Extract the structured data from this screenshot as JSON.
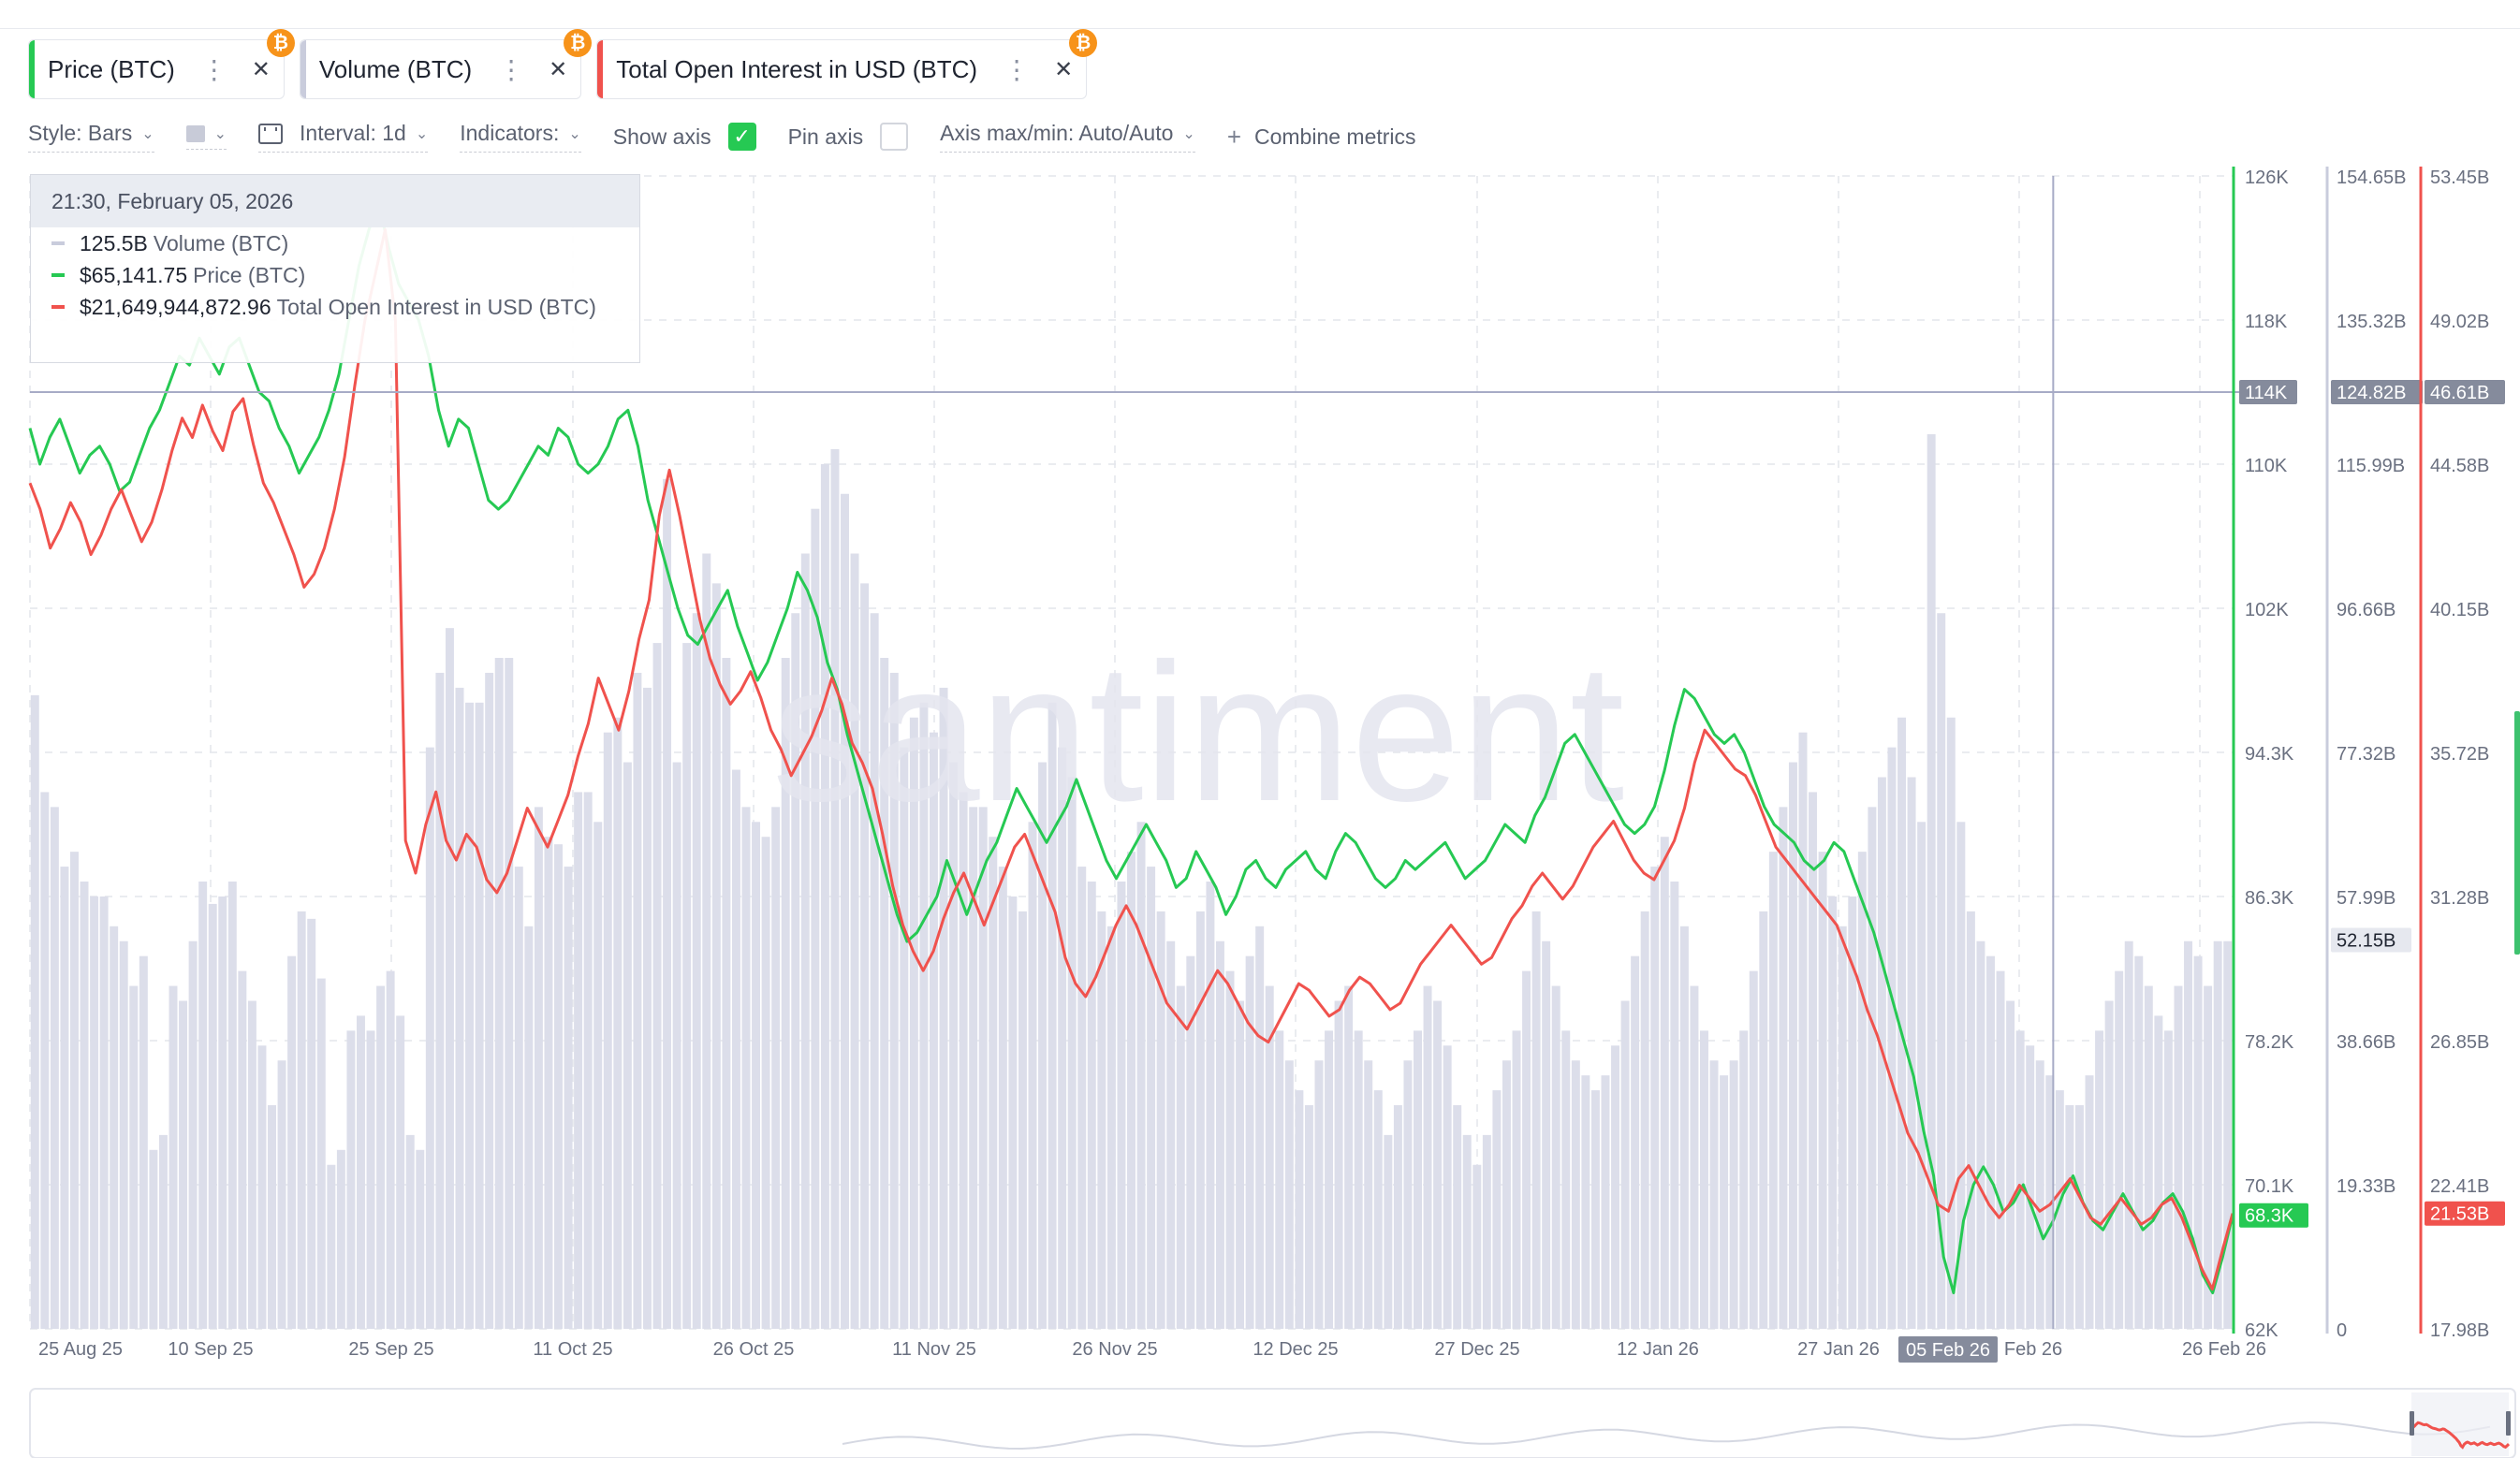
{
  "metrics": [
    {
      "label": "Price (BTC)",
      "color": "#26c953",
      "badge": "₿"
    },
    {
      "label": "Volume (BTC)",
      "color": "#c9ccdc",
      "badge": "₿"
    },
    {
      "label": "Total Open Interest in USD (BTC)",
      "color": "#f0524d",
      "badge": "₿"
    }
  ],
  "toolbar": {
    "style_label": "Style: Bars",
    "interval_label": "Interval: 1d",
    "indicators_label": "Indicators:",
    "show_axis_label": "Show axis",
    "pin_axis_label": "Pin axis",
    "axis_label": "Axis max/min: Auto/Auto",
    "combine_label": "Combine metrics"
  },
  "tooltip": {
    "date": "21:30, February 05, 2026",
    "rows": [
      {
        "value": "125.5B",
        "name": "Volume (BTC)",
        "color": "#c9ccdc"
      },
      {
        "value": "$65,141.75",
        "name": "Price (BTC)",
        "color": "#26c953"
      },
      {
        "value": "$21,649,944,872.96",
        "name": "Total Open Interest in USD (BTC)",
        "color": "#f0524d"
      }
    ]
  },
  "watermark": "santiment",
  "chart_data": {
    "type": "line",
    "x_ticks": [
      "25 Aug 25",
      "10 Sep 25",
      "25 Sep 25",
      "11 Oct 25",
      "26 Oct 25",
      "11 Nov 25",
      "26 Nov 25",
      "12 Dec 25",
      "27 Dec 25",
      "12 Jan 26",
      "27 Jan 26",
      "Feb 26",
      "26 Feb 26"
    ],
    "x_highlight": "05 Feb 26",
    "axes": {
      "price": {
        "ticks": [
          "126K",
          "118K",
          "110K",
          "102K",
          "94.3K",
          "86.3K",
          "78.2K",
          "70.1K",
          "62K"
        ],
        "range": [
          62000,
          126000
        ],
        "cursor_label": "114K",
        "last_label": "68.3K",
        "color": "#26c953"
      },
      "volume": {
        "ticks": [
          "154.65B",
          "135.32B",
          "115.99B",
          "96.66B",
          "77.32B",
          "57.99B",
          "38.66B",
          "19.33B",
          "0"
        ],
        "range": [
          0,
          154.65
        ],
        "cursor_label": "124.82B",
        "last_label": "52.15B",
        "color": "#c9ccdc"
      },
      "open_interest": {
        "ticks": [
          "53.45B",
          "49.02B",
          "44.58B",
          "40.15B",
          "35.72B",
          "31.28B",
          "26.85B",
          "22.41B",
          "17.98B"
        ],
        "range": [
          17.98,
          53.45
        ],
        "cursor_label": "46.61B",
        "last_label": "21.53B",
        "color": "#f0524d"
      }
    },
    "series": [
      {
        "name": "Price (BTC)",
        "axis": "price",
        "color": "#26c953",
        "values": [
          112000,
          110000,
          111500,
          112500,
          111000,
          109500,
          110500,
          111000,
          110000,
          108500,
          109000,
          110500,
          112000,
          113000,
          114500,
          116000,
          115500,
          117000,
          116000,
          115000,
          116500,
          117000,
          115500,
          114000,
          113500,
          112000,
          111000,
          109500,
          110500,
          111500,
          113000,
          115000,
          118000,
          121000,
          123000,
          124500,
          122000,
          120000,
          119000,
          118000,
          116000,
          113000,
          111000,
          112500,
          112000,
          110000,
          108000,
          107500,
          108000,
          109000,
          110000,
          111000,
          110500,
          112000,
          111500,
          110000,
          109500,
          110000,
          111000,
          112500,
          113000,
          111000,
          108000,
          106000,
          104000,
          102000,
          100500,
          100000,
          101000,
          102000,
          103000,
          101000,
          99500,
          98000,
          99000,
          100500,
          102000,
          104000,
          103000,
          101500,
          99000,
          97500,
          95000,
          93000,
          91000,
          89000,
          87000,
          85000,
          83500,
          84000,
          85000,
          86000,
          88000,
          86500,
          85000,
          86500,
          88000,
          89000,
          90500,
          92000,
          91000,
          90000,
          89000,
          90000,
          91000,
          92500,
          91000,
          89500,
          88000,
          87000,
          88000,
          89000,
          90000,
          89000,
          88000,
          86500,
          87000,
          88500,
          87500,
          86500,
          85000,
          86000,
          87500,
          88000,
          87000,
          86500,
          87500,
          88000,
          88500,
          87500,
          87000,
          88500,
          89500,
          89000,
          88000,
          87000,
          86500,
          87000,
          88000,
          87500,
          88000,
          88500,
          89000,
          88000,
          87000,
          87500,
          88000,
          89000,
          90000,
          89500,
          89000,
          90500,
          91500,
          93000,
          94500,
          95000,
          94000,
          93000,
          92000,
          91000,
          90000,
          89500,
          90000,
          91000,
          93000,
          95500,
          97500,
          97000,
          96000,
          95000,
          94500,
          95000,
          94000,
          92500,
          91000,
          90000,
          89500,
          89000,
          88000,
          87500,
          88000,
          89000,
          88500,
          87000,
          85500,
          84000,
          82000,
          80000,
          78000,
          76000,
          73000,
          70500,
          66000,
          64000,
          68000,
          70000,
          71000,
          70000,
          68500,
          69000,
          70000,
          68500,
          67000,
          68000,
          69500,
          70500,
          69000,
          68000,
          67500,
          68500,
          69500,
          68500,
          67500,
          68000,
          69000,
          69500,
          68500,
          67000,
          65000,
          64000,
          66000,
          68300
        ]
      },
      {
        "name": "Total Open Interest in USD (BTC)",
        "axis": "open_interest",
        "color": "#f0524d",
        "values": [
          44.0,
          43.2,
          42.0,
          42.6,
          43.4,
          42.8,
          41.8,
          42.4,
          43.2,
          43.8,
          43.0,
          42.2,
          42.8,
          43.8,
          45.0,
          46.0,
          45.4,
          46.4,
          45.6,
          45.0,
          46.2,
          46.6,
          45.2,
          44.0,
          43.4,
          42.6,
          41.8,
          40.8,
          41.2,
          42.0,
          43.2,
          44.8,
          47.0,
          49.0,
          50.4,
          51.8,
          49.0,
          33.0,
          32.0,
          33.5,
          34.5,
          33.0,
          32.4,
          33.2,
          32.8,
          31.8,
          31.4,
          32.0,
          33.0,
          34.0,
          33.4,
          32.8,
          33.6,
          34.4,
          35.6,
          36.6,
          38.0,
          37.2,
          36.4,
          37.6,
          39.2,
          40.4,
          43.0,
          44.4,
          43.0,
          41.4,
          39.8,
          38.6,
          37.8,
          37.2,
          37.6,
          38.2,
          37.4,
          36.4,
          35.8,
          35.0,
          35.6,
          36.2,
          37.0,
          38.0,
          37.2,
          36.0,
          35.4,
          34.6,
          33.2,
          31.6,
          30.4,
          29.6,
          29.0,
          29.6,
          30.6,
          31.4,
          32.0,
          31.2,
          30.4,
          31.2,
          32.0,
          32.8,
          33.2,
          32.4,
          31.6,
          30.8,
          29.4,
          28.6,
          28.2,
          28.8,
          29.6,
          30.4,
          31.0,
          30.4,
          29.6,
          28.8,
          28.0,
          27.6,
          27.2,
          27.8,
          28.4,
          29.0,
          28.6,
          28.0,
          27.4,
          27.0,
          26.8,
          27.4,
          28.0,
          28.6,
          28.4,
          28.0,
          27.6,
          27.8,
          28.4,
          28.8,
          28.6,
          28.2,
          27.8,
          28.0,
          28.6,
          29.2,
          29.6,
          30.0,
          30.4,
          30.0,
          29.6,
          29.2,
          29.4,
          30.0,
          30.6,
          31.0,
          31.6,
          32.0,
          31.6,
          31.2,
          31.6,
          32.2,
          32.8,
          33.2,
          33.6,
          33.0,
          32.4,
          32.0,
          31.8,
          32.4,
          33.0,
          34.0,
          35.4,
          36.4,
          36.0,
          35.6,
          35.2,
          35.0,
          34.4,
          33.6,
          32.8,
          32.4,
          32.0,
          31.6,
          31.2,
          30.8,
          30.4,
          29.6,
          28.8,
          27.8,
          27.0,
          26.0,
          25.0,
          24.0,
          23.4,
          22.6,
          21.8,
          21.6,
          22.6,
          23.0,
          22.4,
          21.8,
          21.4,
          21.8,
          22.4,
          22.0,
          21.6,
          21.8,
          22.2,
          22.6,
          22.0,
          21.4,
          21.2,
          21.6,
          22.0,
          21.6,
          21.2,
          21.4,
          21.8,
          22.0,
          21.4,
          20.6,
          19.8,
          19.2,
          20.4,
          21.53
        ]
      }
    ],
    "bars": {
      "name": "Volume (BTC)",
      "axis": "volume",
      "color": "#dcdeea",
      "values": [
        85,
        72,
        70,
        62,
        64,
        60,
        58,
        58,
        54,
        52,
        46,
        50,
        24,
        26,
        46,
        44,
        52,
        60,
        57,
        58,
        60,
        48,
        44,
        38,
        30,
        36,
        50,
        56,
        55,
        47,
        22,
        24,
        40,
        42,
        40,
        46,
        48,
        42,
        26,
        24,
        78,
        88,
        94,
        86,
        84,
        84,
        88,
        90,
        90,
        62,
        54,
        70,
        66,
        65,
        62,
        72,
        72,
        68,
        80,
        82,
        76,
        88,
        86,
        92,
        114,
        76,
        92,
        96,
        104,
        100,
        90,
        75,
        70,
        68,
        66,
        70,
        90,
        96,
        104,
        110,
        116,
        118,
        112,
        104,
        100,
        96,
        90,
        88,
        78,
        82,
        84,
        80,
        86,
        76,
        72,
        70,
        70,
        66,
        62,
        58,
        56,
        68,
        76,
        84,
        78,
        74,
        62,
        60,
        56,
        54,
        60,
        64,
        68,
        62,
        56,
        52,
        46,
        50,
        56,
        60,
        52,
        48,
        44,
        50,
        54,
        46,
        40,
        36,
        32,
        30,
        36,
        40,
        44,
        46,
        40,
        36,
        32,
        26,
        30,
        36,
        40,
        46,
        44,
        38,
        30,
        26,
        22,
        26,
        32,
        36,
        40,
        48,
        56,
        52,
        46,
        40,
        36,
        34,
        32,
        34,
        38,
        44,
        50,
        56,
        62,
        66,
        60,
        54,
        46,
        40,
        36,
        34,
        36,
        40,
        48,
        56,
        64,
        70,
        76,
        80,
        72,
        64,
        58,
        54,
        58,
        64,
        70,
        74,
        78,
        82,
        74,
        68,
        120,
        96,
        82,
        68,
        56,
        52,
        50,
        48,
        44,
        40,
        38,
        36,
        34,
        32,
        30,
        30,
        34,
        40,
        44,
        48,
        52,
        50,
        46,
        42,
        40,
        46,
        52,
        50,
        46,
        52,
        52
      ]
    },
    "cursor_index": 203
  }
}
